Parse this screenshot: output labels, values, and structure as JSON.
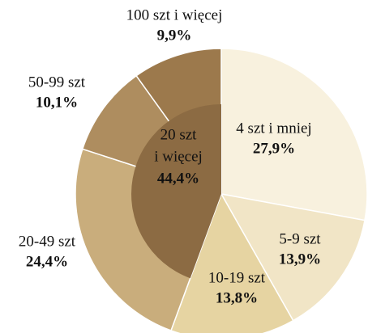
{
  "chart_data": {
    "type": "pie",
    "categories": [
      "4 szt i mniej",
      "5-9 szt",
      "10-19 szt",
      "20-49 szt",
      "50-99 szt",
      "100 szt i więcej"
    ],
    "values": [
      27.9,
      13.9,
      13.8,
      24.4,
      10.1,
      9.9
    ],
    "value_labels": [
      "27,9%",
      "13,9%",
      "13,8%",
      "24,4%",
      "10,1%",
      "9,9%"
    ],
    "colors": [
      "#f8f1de",
      "#f1e5c6",
      "#e6d4a2",
      "#c9ad7c",
      "#ae8d5f",
      "#9c794c"
    ],
    "inner": {
      "label_lines": [
        "20 szt",
        "i więcej"
      ],
      "value": 44.4,
      "value_label": "44,4%",
      "color": "#8c6b43"
    }
  }
}
